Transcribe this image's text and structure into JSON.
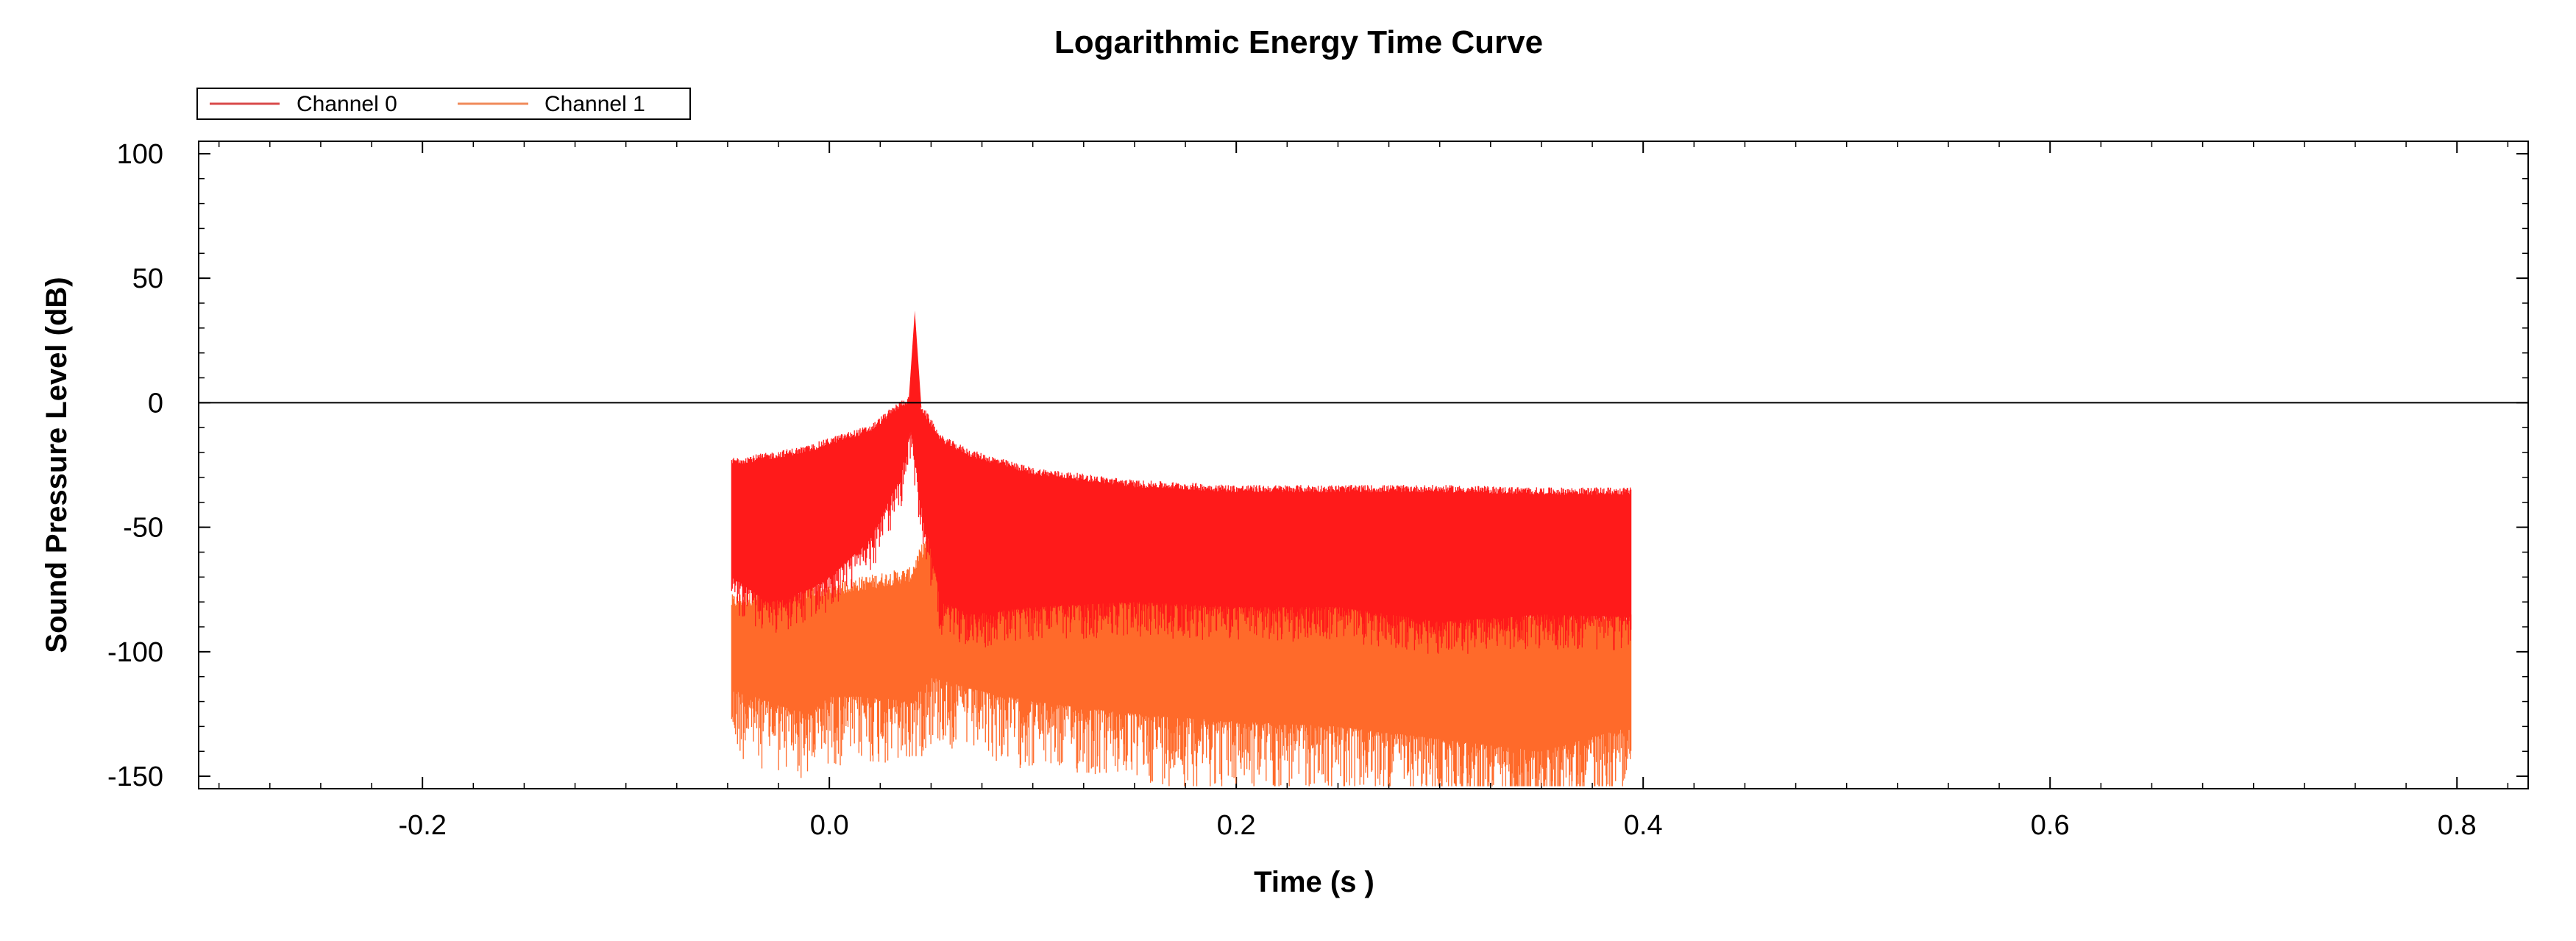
{
  "chart_data": {
    "type": "line",
    "title": "Logarithmic Energy Time Curve",
    "xlabel": "Time (s )",
    "ylabel": "Sound Pressure Level (dB)",
    "xlim": [
      -0.31,
      0.835
    ],
    "ylim": [
      -155,
      105
    ],
    "x_ticks": [
      -0.2,
      0.0,
      0.2,
      0.4,
      0.6,
      0.8
    ],
    "x_tick_labels": [
      "-0.2",
      "0.0",
      "0.2",
      "0.4",
      "0.6",
      "0.8"
    ],
    "y_ticks": [
      100,
      50,
      0,
      -50,
      -100,
      -150
    ],
    "y_tick_labels": [
      "100",
      "50",
      "0",
      "-50",
      "-100",
      "-150"
    ],
    "zero_line": 0,
    "legend": {
      "position": "top-left",
      "entries": [
        "Channel 0",
        "Channel 1"
      ]
    },
    "colors": {
      "Channel 0": "#ff1a1a",
      "Channel 1": "#ff6a2a",
      "legend_line_0": "#d84a4a",
      "legend_line_1": "#f08a5a"
    },
    "series": [
      {
        "name": "Channel 0",
        "x": [
          -0.048,
          -0.03,
          -0.01,
          0.0,
          0.02,
          0.035,
          0.04,
          0.045,
          0.055,
          0.07,
          0.1,
          0.15,
          0.2,
          0.25,
          0.3,
          0.35,
          0.394
        ],
        "upper": [
          -25,
          -23,
          -20,
          -17,
          -12,
          -2,
          0,
          -3,
          -16,
          -22,
          -29,
          -34,
          -36,
          -36,
          -36,
          -37,
          -37
        ],
        "lower": [
          -70,
          -80,
          -75,
          -70,
          -55,
          -30,
          -10,
          -40,
          -80,
          -85,
          -82,
          -80,
          -82,
          -82,
          -88,
          -85,
          -86
        ],
        "peak": {
          "x": 0.042,
          "y": 37
        }
      },
      {
        "name": "Channel 1",
        "x": [
          -0.048,
          -0.03,
          -0.01,
          0.0,
          0.02,
          0.04,
          0.05,
          0.07,
          0.1,
          0.15,
          0.2,
          0.25,
          0.3,
          0.35,
          0.394
        ],
        "upper": [
          -83,
          -80,
          -79,
          -78,
          -75,
          -72,
          -55,
          -62,
          -70,
          -77,
          -80,
          -82,
          -85,
          -87,
          -88
        ],
        "lower": [
          -115,
          -120,
          -125,
          -118,
          -118,
          -120,
          -110,
          -115,
          -120,
          -125,
          -128,
          -130,
          -135,
          -140,
          -130
        ],
        "spike_min": -152
      }
    ]
  }
}
